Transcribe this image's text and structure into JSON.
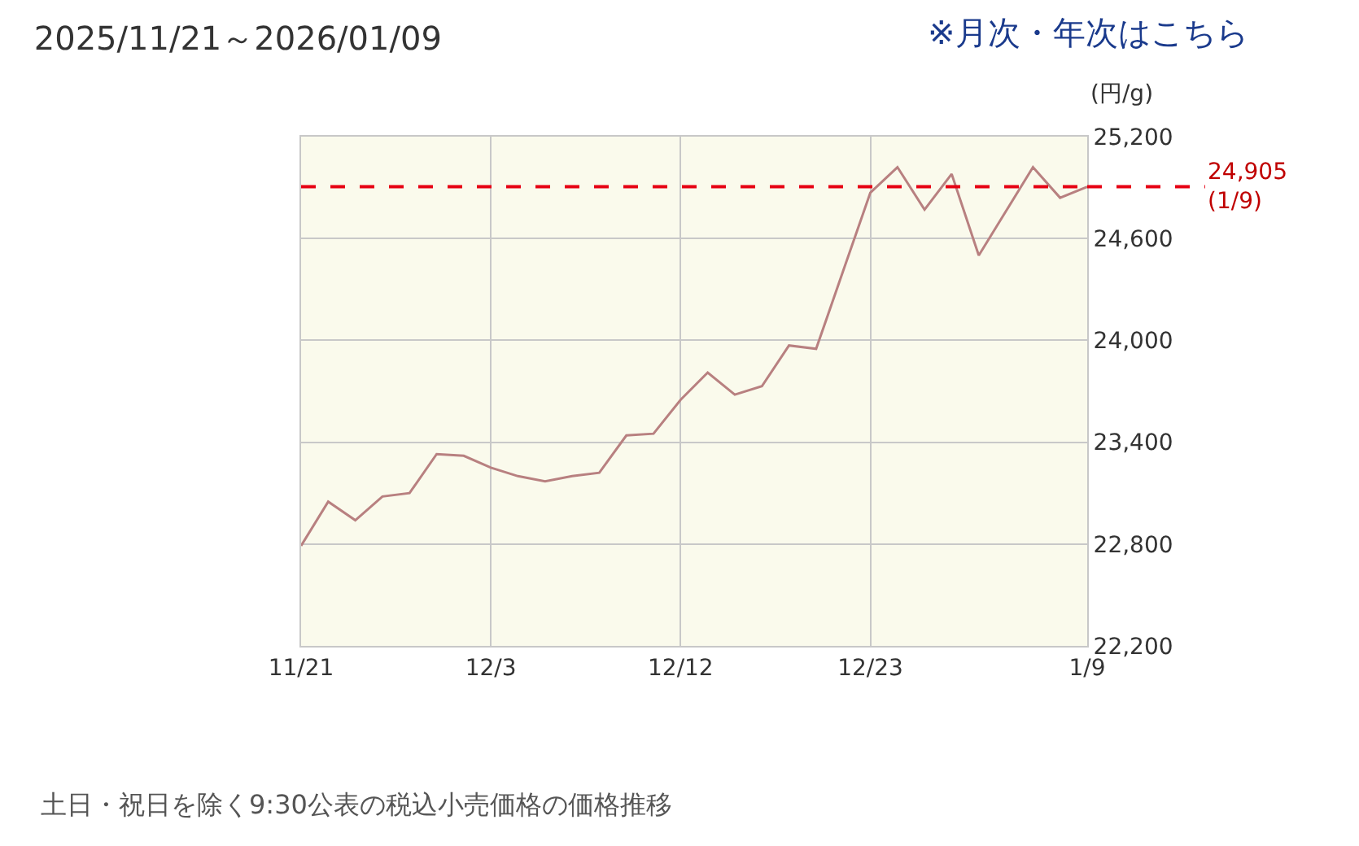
{
  "chart_data": {
    "type": "line",
    "title": "2025/11/21～2026/01/09",
    "ylabel": "(円/g)",
    "annotations": [
      "※月次・年次はこちら",
      "土日・祝日を除く9:30公表の税込小売価格の価格推移"
    ],
    "categories": [
      "11/21",
      null,
      null,
      null,
      null,
      null,
      null,
      "12/3",
      null,
      null,
      null,
      null,
      null,
      null,
      "12/12",
      null,
      null,
      null,
      null,
      null,
      null,
      "12/23",
      null,
      null,
      null,
      null,
      null,
      null,
      null,
      "1/9"
    ],
    "series": [
      {
        "color": "#b88080",
        "values": [
          22790,
          23050,
          22940,
          23080,
          23100,
          23330,
          23320,
          23250,
          23200,
          23170,
          23200,
          23220,
          23440,
          23450,
          23650,
          23810,
          23680,
          23730,
          23970,
          23950,
          24410,
          24870,
          25020,
          24770,
          24980,
          24500,
          24760,
          25020,
          24840,
          24905
        ]
      }
    ],
    "ylim": [
      22200,
      25200
    ],
    "yticks": [
      {
        "value": 22200,
        "label": "22,200"
      },
      {
        "value": 22800,
        "label": "22,800"
      },
      {
        "value": 23400,
        "label": "23,400"
      },
      {
        "value": 24000,
        "label": "24,000"
      },
      {
        "value": 24600,
        "label": "24,600"
      },
      {
        "value": 25200,
        "label": "25,200"
      }
    ],
    "ref_lines": [
      {
        "axis": "y",
        "value": 24905,
        "label": "24,905\n(1/9)",
        "color": "#e60012",
        "line_style": "dashed"
      }
    ],
    "grid": true,
    "marker": "none",
    "line_style": "solid"
  }
}
